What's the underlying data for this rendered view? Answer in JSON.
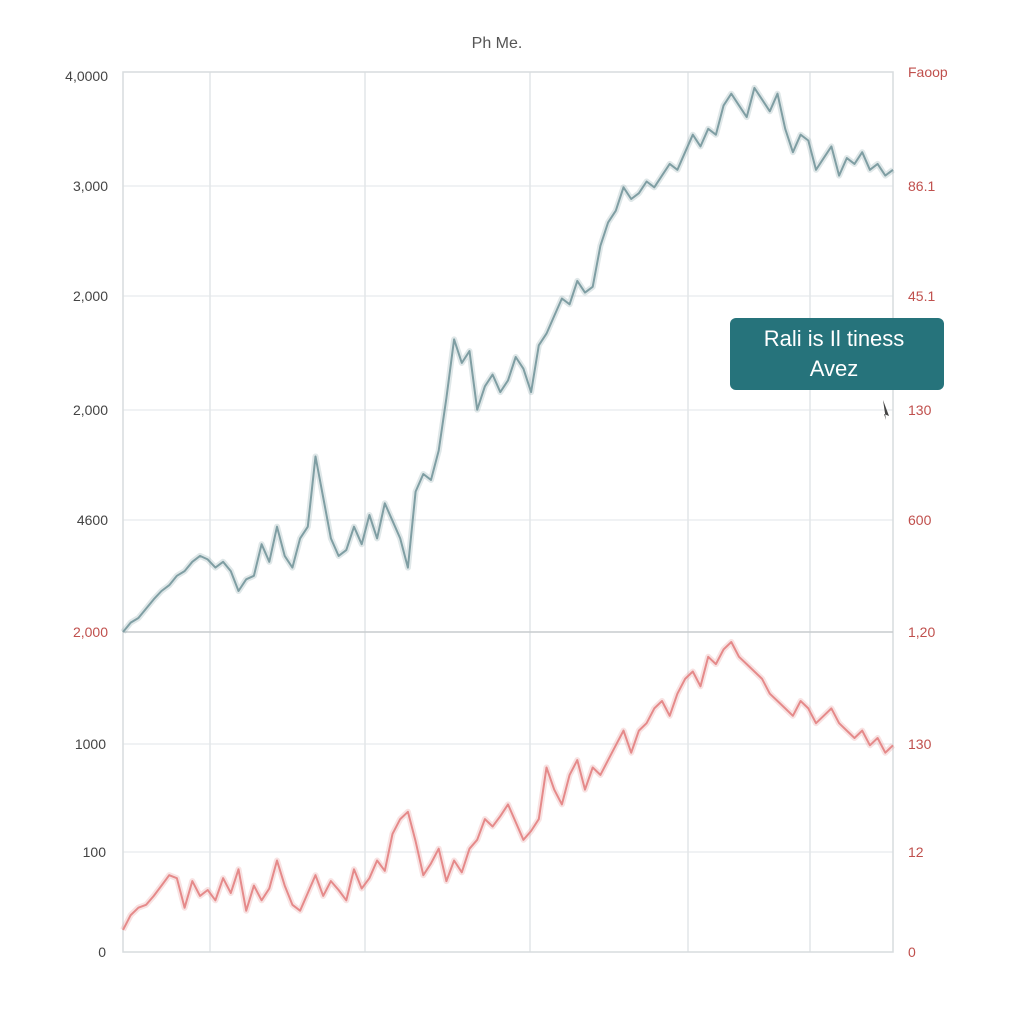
{
  "title": "Ph Me.",
  "colors": {
    "upper_series": "#7f9ea3",
    "lower_series": "#e58a8a",
    "left_tick_upper": "#444444",
    "left_tick_lower": "#c0504d",
    "right_tick": "#c0504d",
    "grid": "#e2e6e8",
    "callout_bg": "#26737b"
  },
  "left_axis_top_ticks": [
    "4,0000",
    "3,000",
    "2,000",
    "2,000",
    "4600",
    "2,000"
  ],
  "left_axis_bottom_ticks": [
    "1000",
    "100",
    "0"
  ],
  "right_axis_ticks": [
    "Faoop",
    "86.1",
    "45.1",
    "130",
    "600",
    "1,20",
    "130",
    "12",
    "0"
  ],
  "callout": {
    "line1": "Rali is Il tiness",
    "line2": "Avez"
  },
  "chart_data": [
    {
      "type": "line",
      "panel": "upper",
      "x": [
        0,
        4,
        8,
        12,
        16,
        20,
        24,
        28,
        32,
        36,
        40,
        44,
        48,
        52,
        56,
        60,
        64,
        68,
        72,
        76,
        80,
        84,
        88,
        92,
        96,
        100,
        104,
        108,
        112,
        116,
        120,
        124,
        128,
        132,
        136,
        140,
        144,
        148,
        152,
        156,
        160,
        164,
        168,
        172,
        176,
        180,
        184,
        188,
        192,
        196,
        200,
        204,
        208,
        212,
        216,
        220,
        224,
        228,
        232,
        236,
        240,
        244,
        248,
        252,
        256,
        260,
        264,
        268,
        272,
        276,
        280,
        284,
        288,
        292,
        296,
        300,
        304,
        308,
        312,
        316,
        320,
        324,
        328,
        332,
        336,
        340,
        344,
        348,
        352,
        356,
        360,
        364,
        368,
        372,
        376,
        380,
        384,
        388,
        392,
        396,
        400
      ],
      "values": [
        1000,
        1080,
        1120,
        1200,
        1280,
        1350,
        1400,
        1480,
        1520,
        1600,
        1650,
        1620,
        1550,
        1600,
        1520,
        1350,
        1450,
        1480,
        1750,
        1600,
        1900,
        1650,
        1550,
        1800,
        1900,
        2500,
        2150,
        1800,
        1650,
        1700,
        1900,
        1750,
        2000,
        1800,
        2100,
        1950,
        1800,
        1550,
        2200,
        2350,
        2300,
        2550,
        3000,
        3500,
        3300,
        3400,
        2900,
        3100,
        3200,
        3050,
        3150,
        3350,
        3250,
        3050,
        3450,
        3550,
        3700,
        3850,
        3800,
        4000,
        3900,
        3950,
        4300,
        4500,
        4600,
        4800,
        4700,
        4750,
        4850,
        4800,
        4900,
        5000,
        4950,
        5100,
        5250,
        5150,
        5300,
        5250,
        5500,
        5600,
        5500,
        5400,
        5650,
        5550,
        5450,
        5600,
        5300,
        5100,
        5250,
        5200,
        4950,
        5050,
        5150,
        4900,
        5050,
        5000,
        5100,
        4950,
        5000,
        4900,
        4950
      ],
      "ylim": [
        1000,
        5700
      ]
    },
    {
      "type": "line",
      "panel": "lower",
      "x": [
        0,
        4,
        8,
        12,
        16,
        20,
        24,
        28,
        32,
        36,
        40,
        44,
        48,
        52,
        56,
        60,
        64,
        68,
        72,
        76,
        80,
        84,
        88,
        92,
        96,
        100,
        104,
        108,
        112,
        116,
        120,
        124,
        128,
        132,
        136,
        140,
        144,
        148,
        152,
        156,
        160,
        164,
        168,
        172,
        176,
        180,
        184,
        188,
        192,
        196,
        200,
        204,
        208,
        212,
        216,
        220,
        224,
        228,
        232,
        236,
        240,
        244,
        248,
        252,
        256,
        260,
        264,
        268,
        272,
        276,
        280,
        284,
        288,
        292,
        296,
        300,
        304,
        308,
        312,
        316,
        320,
        324,
        328,
        332,
        336,
        340,
        344,
        348,
        352,
        356,
        360,
        364,
        368,
        372,
        376,
        380,
        384,
        388,
        392,
        396,
        400
      ],
      "values": [
        150,
        250,
        300,
        320,
        380,
        450,
        520,
        500,
        300,
        480,
        380,
        420,
        350,
        500,
        400,
        560,
        280,
        450,
        350,
        430,
        620,
        450,
        320,
        280,
        400,
        520,
        380,
        480,
        420,
        350,
        560,
        430,
        500,
        620,
        550,
        800,
        900,
        950,
        750,
        520,
        600,
        700,
        480,
        620,
        540,
        700,
        760,
        900,
        850,
        920,
        1000,
        880,
        760,
        820,
        900,
        1250,
        1100,
        1000,
        1200,
        1300,
        1100,
        1250,
        1200,
        1300,
        1400,
        1500,
        1350,
        1500,
        1550,
        1650,
        1700,
        1600,
        1750,
        1850,
        1900,
        1800,
        2000,
        1950,
        2050,
        2100,
        2000,
        1950,
        1900,
        1850,
        1750,
        1700,
        1650,
        1600,
        1700,
        1650,
        1550,
        1600,
        1650,
        1550,
        1500,
        1450,
        1500,
        1400,
        1450,
        1350,
        1400
      ],
      "ylim": [
        0,
        2100
      ]
    }
  ]
}
